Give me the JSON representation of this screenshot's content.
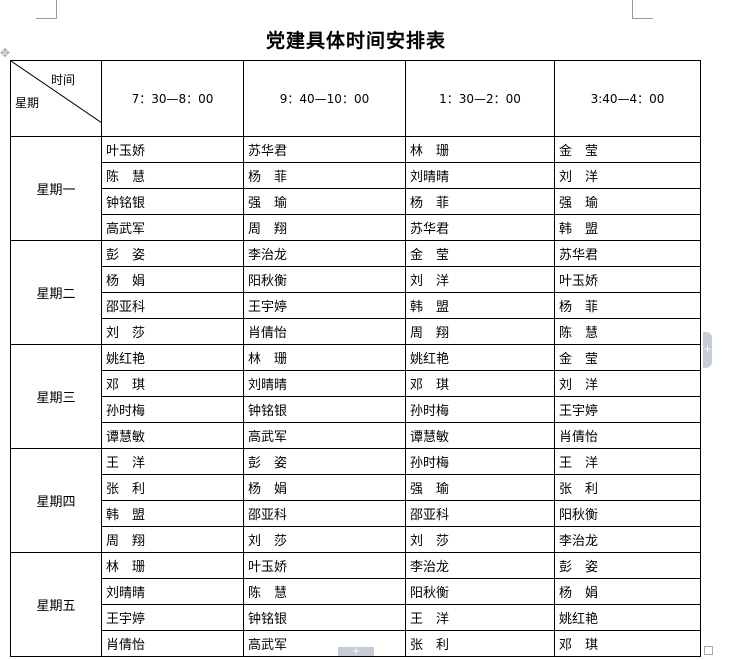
{
  "document": {
    "title": "党建具体时间安排表",
    "header": {
      "diagonal_top": "时间",
      "diagonal_bottom": "星期",
      "time_slots": [
        "7：30—8：00",
        "9：40—10：00",
        "1：30—2：00",
        "3:40—4：00"
      ]
    },
    "days": [
      {
        "day": "星期一",
        "rows": [
          [
            "叶玉娇",
            "苏华君",
            "林　珊",
            "金　莹"
          ],
          [
            "陈　慧",
            "杨　菲",
            "刘晴晴",
            "刘　洋"
          ],
          [
            "钟铭银",
            "强　瑜",
            "杨　菲",
            "强　瑜"
          ],
          [
            "高武军",
            "周　翔",
            "苏华君",
            "韩　盟"
          ]
        ]
      },
      {
        "day": "星期二",
        "rows": [
          [
            "彭　姿",
            "李治龙",
            "金　莹",
            "苏华君"
          ],
          [
            "杨　娟",
            "阳秋衡",
            "刘　洋",
            "叶玉娇"
          ],
          [
            "邵亚科",
            "王宇婷",
            "韩　盟",
            "杨　菲"
          ],
          [
            "刘　莎",
            "肖倩怡",
            "周　翔",
            "陈　慧"
          ]
        ]
      },
      {
        "day": "星期三",
        "rows": [
          [
            "姚红艳",
            "林　珊",
            "姚红艳",
            "金　莹"
          ],
          [
            "邓　琪",
            "刘晴晴",
            "邓　琪",
            "刘　洋"
          ],
          [
            "孙时梅",
            "钟铭银",
            "孙时梅",
            "王宇婷"
          ],
          [
            "谭慧敏",
            "高武军",
            "谭慧敏",
            "肖倩怡"
          ]
        ]
      },
      {
        "day": "星期四",
        "rows": [
          [
            "王　洋",
            "彭　姿",
            "孙时梅",
            "王　洋"
          ],
          [
            "张　利",
            "杨　娟",
            "强　瑜",
            "张　利"
          ],
          [
            "韩　盟",
            "邵亚科",
            "邵亚科",
            "阳秋衡"
          ],
          [
            "周　翔",
            "刘　莎",
            "刘　莎",
            "李治龙"
          ]
        ]
      },
      {
        "day": "星期五",
        "rows": [
          [
            "林　珊",
            "叶玉娇",
            "李治龙",
            "彭　姿"
          ],
          [
            "刘晴晴",
            "陈　慧",
            "阳秋衡",
            "杨　娟"
          ],
          [
            "王宇婷",
            "钟铭银",
            "王　洋",
            "姚红艳"
          ],
          [
            "肖倩怡",
            "高武军",
            "张　利",
            "邓　琪"
          ]
        ]
      }
    ]
  },
  "icons": {
    "table_move": "move-cross-icon",
    "add_column": "plus-icon",
    "add_row": "plus-icon",
    "resize": "resize-handle-icon"
  }
}
